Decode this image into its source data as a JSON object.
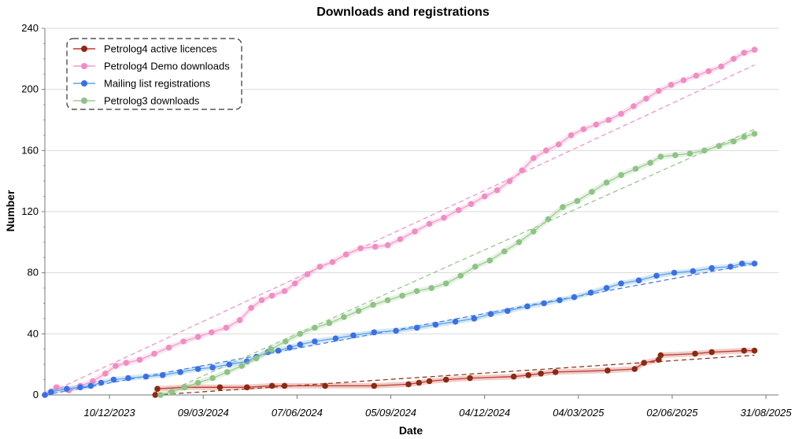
{
  "chart_data": {
    "type": "line",
    "title": "Downloads and registrations",
    "xlabel": "Date",
    "ylabel": "Number",
    "x_axis_type": "date",
    "xlim": [
      "2023-10-09",
      "2025-09-12"
    ],
    "ylim": [
      0,
      240
    ],
    "yticks": [
      0,
      40,
      80,
      120,
      160,
      200,
      240
    ],
    "xticks": [
      "2023-12-10",
      "2024-03-09",
      "2024-06-07",
      "2024-09-05",
      "2024-12-04",
      "2025-03-04",
      "2025-06-02",
      "2025-08-31"
    ],
    "xtick_labels": [
      "10/12/2023",
      "09/03/2024",
      "07/06/2024",
      "05/09/2024",
      "04/12/2024",
      "04/03/2025",
      "02/06/2025",
      "31/08/2025"
    ],
    "grid": true,
    "legend": "top-left",
    "trendlines": true,
    "series": [
      {
        "name": "Petrolog4 active licences",
        "color": "#c0392b",
        "marker_color": "#8b2a12",
        "points": [
          [
            "2024-01-23",
            0
          ],
          [
            "2024-01-25",
            4
          ],
          [
            "2024-02-20",
            5
          ],
          [
            "2024-03-25",
            5
          ],
          [
            "2024-04-20",
            5
          ],
          [
            "2024-05-14",
            6
          ],
          [
            "2024-05-26",
            6
          ],
          [
            "2024-07-04",
            6
          ],
          [
            "2024-08-20",
            6
          ],
          [
            "2024-09-22",
            7
          ],
          [
            "2024-10-02",
            8
          ],
          [
            "2024-10-12",
            9
          ],
          [
            "2024-10-28",
            10
          ],
          [
            "2024-11-20",
            11
          ],
          [
            "2025-01-01",
            12
          ],
          [
            "2025-01-15",
            13
          ],
          [
            "2025-01-27",
            14
          ],
          [
            "2025-02-10",
            15
          ],
          [
            "2025-04-01",
            16
          ],
          [
            "2025-04-27",
            17
          ],
          [
            "2025-05-06",
            21
          ],
          [
            "2025-05-20",
            23
          ],
          [
            "2025-05-22",
            26
          ],
          [
            "2025-06-24",
            27
          ],
          [
            "2025-07-10",
            28
          ],
          [
            "2025-08-10",
            29
          ],
          [
            "2025-08-20",
            29
          ]
        ],
        "trend": [
          [
            "2024-01-23",
            0
          ],
          [
            "2025-08-20",
            26
          ]
        ]
      },
      {
        "name": "Petrolog4 Demo downloads",
        "color": "#f29bc9",
        "marker_color": "#f28cc3",
        "points": [
          [
            "2023-10-09",
            0
          ],
          [
            "2023-10-20",
            5
          ],
          [
            "2023-11-01",
            3
          ],
          [
            "2023-11-12",
            6
          ],
          [
            "2023-11-24",
            9
          ],
          [
            "2023-12-06",
            14
          ],
          [
            "2023-12-16",
            19
          ],
          [
            "2023-12-26",
            21
          ],
          [
            "2024-01-08",
            23
          ],
          [
            "2024-01-22",
            27
          ],
          [
            "2024-02-05",
            31
          ],
          [
            "2024-02-19",
            35
          ],
          [
            "2024-03-04",
            38
          ],
          [
            "2024-03-17",
            41
          ],
          [
            "2024-03-31",
            44
          ],
          [
            "2024-04-13",
            49
          ],
          [
            "2024-04-24",
            57
          ],
          [
            "2024-05-04",
            62
          ],
          [
            "2024-05-14",
            65
          ],
          [
            "2024-05-26",
            68
          ],
          [
            "2024-06-05",
            73
          ],
          [
            "2024-06-17",
            79
          ],
          [
            "2024-06-29",
            84
          ],
          [
            "2024-07-11",
            87
          ],
          [
            "2024-07-24",
            92
          ],
          [
            "2024-08-07",
            96
          ],
          [
            "2024-08-21",
            97
          ],
          [
            "2024-09-02",
            98
          ],
          [
            "2024-09-14",
            102
          ],
          [
            "2024-09-28",
            107
          ],
          [
            "2024-10-12",
            112
          ],
          [
            "2024-10-26",
            116
          ],
          [
            "2024-11-09",
            121
          ],
          [
            "2024-11-21",
            125
          ],
          [
            "2024-12-04",
            130
          ],
          [
            "2024-12-16",
            134
          ],
          [
            "2024-12-28",
            140
          ],
          [
            "2025-01-09",
            147
          ],
          [
            "2025-01-20",
            155
          ],
          [
            "2025-02-01",
            160
          ],
          [
            "2025-02-13",
            164
          ],
          [
            "2025-02-25",
            170
          ],
          [
            "2025-03-09",
            174
          ],
          [
            "2025-03-21",
            177
          ],
          [
            "2025-04-02",
            180
          ],
          [
            "2025-04-14",
            184
          ],
          [
            "2025-04-26",
            189
          ],
          [
            "2025-05-08",
            194
          ],
          [
            "2025-05-20",
            199
          ],
          [
            "2025-06-01",
            203
          ],
          [
            "2025-06-13",
            206
          ],
          [
            "2025-06-25",
            209
          ],
          [
            "2025-07-07",
            212
          ],
          [
            "2025-07-19",
            215
          ],
          [
            "2025-07-31",
            220
          ],
          [
            "2025-08-10",
            224
          ],
          [
            "2025-08-20",
            226
          ]
        ],
        "trend": [
          [
            "2023-10-09",
            0
          ],
          [
            "2025-08-20",
            216
          ]
        ]
      },
      {
        "name": "Mailing list registrations",
        "color": "#5aa5e0",
        "marker_color": "#3b6fe8",
        "points": [
          [
            "2023-10-09",
            0
          ],
          [
            "2023-10-15",
            2
          ],
          [
            "2023-10-30",
            4
          ],
          [
            "2023-11-12",
            5
          ],
          [
            "2023-11-22",
            6
          ],
          [
            "2023-12-02",
            8
          ],
          [
            "2023-12-14",
            10
          ],
          [
            "2023-12-28",
            11
          ],
          [
            "2024-01-14",
            12
          ],
          [
            "2024-01-30",
            13
          ],
          [
            "2024-02-16",
            15
          ],
          [
            "2024-03-04",
            17
          ],
          [
            "2024-03-18",
            18
          ],
          [
            "2024-04-03",
            20
          ],
          [
            "2024-04-20",
            22
          ],
          [
            "2024-04-29",
            25
          ],
          [
            "2024-05-10",
            28
          ],
          [
            "2024-05-20",
            29
          ],
          [
            "2024-05-31",
            31
          ],
          [
            "2024-06-10",
            33
          ],
          [
            "2024-06-24",
            35
          ],
          [
            "2024-07-14",
            37
          ],
          [
            "2024-07-31",
            39
          ],
          [
            "2024-08-20",
            41
          ],
          [
            "2024-09-10",
            42
          ],
          [
            "2024-09-30",
            44
          ],
          [
            "2024-10-18",
            46
          ],
          [
            "2024-11-06",
            48
          ],
          [
            "2024-11-24",
            50
          ],
          [
            "2024-12-10",
            53
          ],
          [
            "2024-12-26",
            55
          ],
          [
            "2025-01-14",
            58
          ],
          [
            "2025-01-30",
            60
          ],
          [
            "2025-02-14",
            62
          ],
          [
            "2025-02-28",
            64
          ],
          [
            "2025-03-16",
            67
          ],
          [
            "2025-03-31",
            70
          ],
          [
            "2025-04-14",
            73
          ],
          [
            "2025-05-01",
            75
          ],
          [
            "2025-05-18",
            78
          ],
          [
            "2025-06-04",
            80
          ],
          [
            "2025-06-22",
            81
          ],
          [
            "2025-07-10",
            83
          ],
          [
            "2025-07-28",
            84
          ],
          [
            "2025-08-08",
            86
          ],
          [
            "2025-08-20",
            86
          ]
        ],
        "trend": [
          [
            "2023-10-09",
            0
          ],
          [
            "2025-08-20",
            86
          ]
        ]
      },
      {
        "name": "Petrolog3 downloads",
        "color": "#9ccc8f",
        "marker_color": "#8fc286",
        "points": [
          [
            "2024-01-28",
            0
          ],
          [
            "2024-02-08",
            2
          ],
          [
            "2024-02-20",
            5
          ],
          [
            "2024-03-04",
            8
          ],
          [
            "2024-03-18",
            11
          ],
          [
            "2024-04-01",
            15
          ],
          [
            "2024-04-15",
            19
          ],
          [
            "2024-04-29",
            24
          ],
          [
            "2024-05-13",
            30
          ],
          [
            "2024-05-27",
            35
          ],
          [
            "2024-06-10",
            40
          ],
          [
            "2024-06-24",
            44
          ],
          [
            "2024-07-08",
            47
          ],
          [
            "2024-07-22",
            51
          ],
          [
            "2024-08-05",
            55
          ],
          [
            "2024-08-19",
            59
          ],
          [
            "2024-09-02",
            62
          ],
          [
            "2024-09-16",
            65
          ],
          [
            "2024-09-30",
            68
          ],
          [
            "2024-10-14",
            70
          ],
          [
            "2024-10-28",
            73
          ],
          [
            "2024-11-11",
            78
          ],
          [
            "2024-11-25",
            84
          ],
          [
            "2024-12-09",
            88
          ],
          [
            "2024-12-23",
            94
          ],
          [
            "2025-01-06",
            100
          ],
          [
            "2025-01-20",
            107
          ],
          [
            "2025-02-03",
            115
          ],
          [
            "2025-02-17",
            123
          ],
          [
            "2025-03-03",
            127
          ],
          [
            "2025-03-17",
            133
          ],
          [
            "2025-03-31",
            139
          ],
          [
            "2025-04-14",
            144
          ],
          [
            "2025-04-28",
            148
          ],
          [
            "2025-05-12",
            152
          ],
          [
            "2025-05-22",
            156
          ],
          [
            "2025-06-05",
            157
          ],
          [
            "2025-06-19",
            158
          ],
          [
            "2025-07-03",
            160
          ],
          [
            "2025-07-17",
            163
          ],
          [
            "2025-07-31",
            166
          ],
          [
            "2025-08-10",
            169
          ],
          [
            "2025-08-20",
            171
          ]
        ],
        "trend": [
          [
            "2024-01-28",
            0
          ],
          [
            "2025-08-20",
            174
          ]
        ]
      }
    ]
  }
}
